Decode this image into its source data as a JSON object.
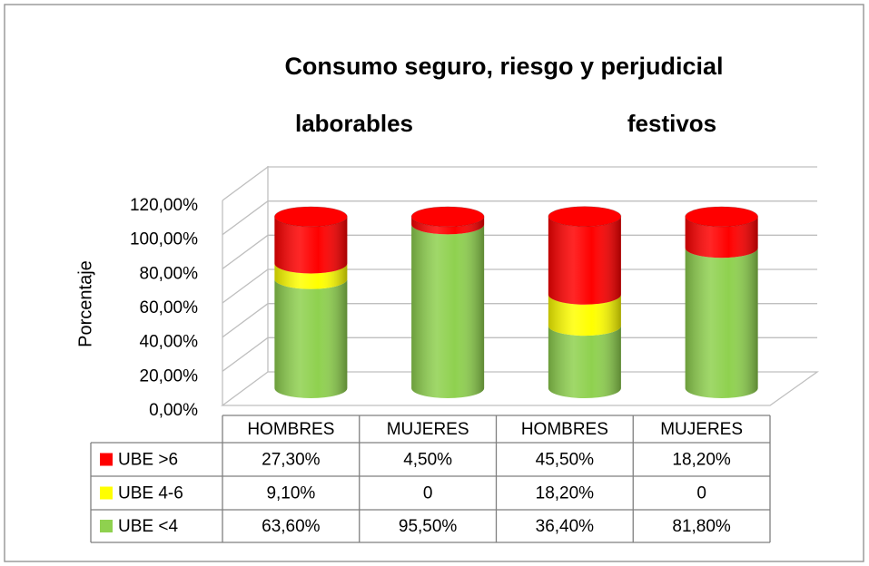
{
  "chart_data": {
    "type": "bar3d-stacked",
    "title": "Consumo seguro, riesgo y perjudicial",
    "group_labels": [
      "laborables",
      "festivos"
    ],
    "y_label": "Porcentaje",
    "categories": [
      "HOMBRES",
      "MUJERES",
      "HOMBRES",
      "MUJERES"
    ],
    "series": [
      {
        "name": "UBE <4",
        "color": "#8fd14f",
        "values": [
          63.6,
          95.5,
          36.4,
          81.8
        ],
        "value_labels": [
          "63,60%",
          "95,50%",
          "36,40%",
          "81,80%"
        ]
      },
      {
        "name": "UBE 4-6",
        "color": "#ffff00",
        "values": [
          9.1,
          0,
          18.2,
          0
        ],
        "value_labels": [
          "9,10%",
          "0",
          "18,20%",
          "0"
        ]
      },
      {
        "name": "UBE >6",
        "color": "#ff0000",
        "values": [
          27.3,
          4.5,
          45.5,
          18.2
        ],
        "value_labels": [
          "27,30%",
          "4,50%",
          "45,50%",
          "18,20%"
        ]
      }
    ],
    "ylim": [
      0,
      120
    ],
    "yticks": [
      {
        "value": 0,
        "label": "0,00%"
      },
      {
        "value": 20,
        "label": "20,00%"
      },
      {
        "value": 40,
        "label": "40,00%"
      },
      {
        "value": 60,
        "label": "60,00%"
      },
      {
        "value": 80,
        "label": "80,00%"
      },
      {
        "value": 100,
        "label": "100,00%"
      },
      {
        "value": 120,
        "label": "120,00%"
      }
    ],
    "grid": true
  }
}
